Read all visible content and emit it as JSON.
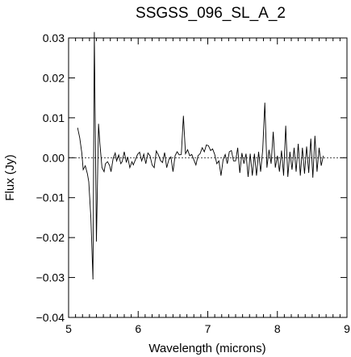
{
  "chart_data": {
    "type": "line",
    "title": "SSGSS_096_SL_A_2",
    "xlabel": "Wavelength (microns)",
    "ylabel": "Flux (Jy)",
    "xlim": [
      5,
      9
    ],
    "ylim": [
      -0.04,
      0.03
    ],
    "x_ticks": [
      "5",
      "6",
      "7",
      "8",
      "9"
    ],
    "y_ticks": [
      "0.03",
      "0.02",
      "0.01",
      "0.00",
      "−0.01",
      "−0.02",
      "−0.03",
      "−0.04"
    ],
    "y_tick_values": [
      0.03,
      0.02,
      0.01,
      0.0,
      -0.01,
      -0.02,
      -0.03,
      -0.04
    ],
    "zero_line": true,
    "grid": false,
    "series": [
      {
        "x": [
          5.13,
          5.16,
          5.19,
          5.21,
          5.24,
          5.27,
          5.29,
          5.32,
          5.35,
          5.37,
          5.4,
          5.43,
          5.45,
          5.48,
          5.51,
          5.53,
          5.56,
          5.59,
          5.61,
          5.64,
          5.67,
          5.69,
          5.72,
          5.75,
          5.77,
          5.8,
          5.83,
          5.85,
          5.88,
          5.91,
          5.93,
          5.96,
          5.99,
          6.02,
          6.05,
          6.08,
          6.11,
          6.14,
          6.17,
          6.2,
          6.23,
          6.26,
          6.29,
          6.32,
          6.35,
          6.38,
          6.41,
          6.44,
          6.47,
          6.5,
          6.53,
          6.56,
          6.59,
          6.62,
          6.65,
          6.68,
          6.71,
          6.74,
          6.77,
          6.8,
          6.83,
          6.86,
          6.89,
          6.92,
          6.95,
          6.98,
          7.01,
          7.04,
          7.07,
          7.1,
          7.13,
          7.16,
          7.19,
          7.22,
          7.25,
          7.28,
          7.31,
          7.34,
          7.37,
          7.4,
          7.43,
          7.46,
          7.49,
          7.52,
          7.55,
          7.58,
          7.61,
          7.64,
          7.67,
          7.7,
          7.73,
          7.76,
          7.79,
          7.82,
          7.85,
          7.88,
          7.91,
          7.94,
          7.97,
          8.0,
          8.03,
          8.06,
          8.09,
          8.12,
          8.15,
          8.18,
          8.21,
          8.24,
          8.27,
          8.3,
          8.33,
          8.36,
          8.39,
          8.42,
          8.45,
          8.48,
          8.51,
          8.54,
          8.57,
          8.6,
          8.63,
          8.66
        ],
        "y": [
          0.0075,
          0.005,
          0.0012,
          -0.003,
          -0.002,
          -0.004,
          -0.006,
          -0.015,
          -0.0305,
          0.0315,
          -0.021,
          0.0085,
          0.0035,
          -0.0025,
          -0.0035,
          -0.0015,
          -0.001,
          -0.002,
          -0.0035,
          -0.0002,
          0.0012,
          -0.0008,
          0.0007,
          -0.0015,
          -0.001,
          0.0015,
          -0.0012,
          0.0002,
          -0.0025,
          -0.001,
          -0.0018,
          -0.0005,
          0.0008,
          0.0014,
          -0.0008,
          0.0009,
          -0.0015,
          0.0012,
          0.0005,
          -0.0018,
          -0.0025,
          0.0017,
          0.0007,
          -0.0007,
          -0.0012,
          0.0013,
          -0.0025,
          -0.0005,
          0.0002,
          -0.0035,
          0.0005,
          0.0015,
          0.0007,
          0.0008,
          0.0105,
          0.001,
          0.002,
          0.0005,
          0.0008,
          -0.0005,
          -0.0018,
          0.0005,
          0.001,
          0.0025,
          0.0015,
          0.0032,
          0.003,
          0.0018,
          0.0022,
          0.0008,
          -0.0015,
          -0.0008,
          -0.0045,
          -0.0005,
          0.0008,
          -0.0015,
          0.0015,
          0.0018,
          -0.0008,
          -0.0008,
          0.0025,
          -0.0038,
          0.0012,
          -0.0015,
          0.001,
          -0.0048,
          0.001,
          -0.0045,
          0.001,
          -0.0045,
          0.0015,
          -0.0035,
          0.002,
          0.0138,
          -0.0025,
          0.002,
          -0.0015,
          0.0065,
          -0.0025,
          0.0005,
          -0.0035,
          0.0018,
          -0.0045,
          0.008,
          -0.0048,
          0.0015,
          -0.003,
          0.0025,
          -0.0035,
          0.0035,
          -0.0045,
          0.0025,
          -0.004,
          0.0028,
          -0.0038,
          0.0048,
          -0.005,
          0.0055,
          -0.0035,
          0.0025,
          -0.002,
          0.0005
        ]
      }
    ]
  }
}
